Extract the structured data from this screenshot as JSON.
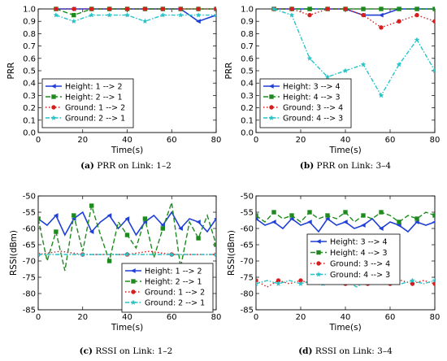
{
  "colors": {
    "height_fwd": "#1f3fd6",
    "height_rev": "#1e8a1e",
    "ground_fwd": "#d61e1e",
    "ground_rev": "#27c3c8"
  },
  "chart_data": [
    {
      "type": "line",
      "caption_tag": "(a)",
      "caption_text": "PRR on Link: 1–2",
      "xlabel": "Time(s)",
      "ylabel": "PRR",
      "xlim": [
        0,
        80
      ],
      "ylim": [
        0,
        1.0
      ],
      "xticks": [
        0,
        20,
        40,
        60,
        80
      ],
      "yticks": [
        0.0,
        0.1,
        0.2,
        0.3,
        0.4,
        0.5,
        0.6,
        0.7,
        0.8,
        0.9,
        1.0
      ],
      "grid": false,
      "legend_position": "lower-left",
      "series": [
        {
          "name": "Height: 1 --> 2",
          "marker": "triangle",
          "style": "solid",
          "x": [
            8,
            16,
            24,
            32,
            40,
            48,
            56,
            64,
            72,
            80
          ],
          "y": [
            1.0,
            1.0,
            1.0,
            1.0,
            1.0,
            1.0,
            1.0,
            1.0,
            0.9,
            0.95
          ]
        },
        {
          "name": "Height: 2 --> 1",
          "marker": "square",
          "style": "dashed",
          "x": [
            8,
            16,
            24,
            32,
            40,
            48,
            56,
            64,
            72,
            80
          ],
          "y": [
            1.0,
            0.95,
            1.0,
            1.0,
            1.0,
            1.0,
            1.0,
            1.0,
            1.0,
            1.0
          ]
        },
        {
          "name": "Ground: 1 --> 2",
          "marker": "circle",
          "style": "dotted",
          "x": [
            8,
            16,
            24,
            32,
            40,
            48,
            56,
            64,
            72,
            80
          ],
          "y": [
            1.0,
            1.0,
            1.0,
            1.0,
            1.0,
            1.0,
            1.0,
            1.0,
            1.0,
            1.0
          ]
        },
        {
          "name": "Ground: 2 --> 1",
          "marker": "star",
          "style": "dashdot",
          "x": [
            8,
            16,
            24,
            32,
            40,
            48,
            56,
            64,
            72,
            80
          ],
          "y": [
            0.95,
            0.9,
            0.95,
            0.95,
            0.95,
            0.9,
            0.95,
            0.95,
            0.95,
            0.95
          ]
        }
      ]
    },
    {
      "type": "line",
      "caption_tag": "(b)",
      "caption_text": "PRR on Link: 3–4",
      "xlabel": "Time(s)",
      "ylabel": "PRR",
      "xlim": [
        0,
        80
      ],
      "ylim": [
        0,
        1.0
      ],
      "xticks": [
        0,
        20,
        40,
        60,
        80
      ],
      "yticks": [
        0.0,
        0.1,
        0.2,
        0.3,
        0.4,
        0.5,
        0.6,
        0.7,
        0.8,
        0.9,
        1.0
      ],
      "grid": false,
      "legend_position": "lower-left",
      "series": [
        {
          "name": "Height: 3 --> 4",
          "marker": "triangle",
          "style": "solid",
          "x": [
            8,
            16,
            24,
            32,
            40,
            48,
            56,
            64,
            72,
            80
          ],
          "y": [
            1.0,
            1.0,
            1.0,
            1.0,
            1.0,
            0.95,
            0.95,
            1.0,
            1.0,
            1.0
          ]
        },
        {
          "name": "Height: 4 --> 3",
          "marker": "square",
          "style": "dashed",
          "x": [
            8,
            16,
            24,
            32,
            40,
            48,
            56,
            64,
            72,
            80
          ],
          "y": [
            1.0,
            1.0,
            1.0,
            1.0,
            1.0,
            1.0,
            1.0,
            1.0,
            1.0,
            1.0
          ]
        },
        {
          "name": "Ground: 3 --> 4",
          "marker": "circle",
          "style": "dotted",
          "x": [
            8,
            16,
            24,
            32,
            40,
            48,
            56,
            64,
            72,
            80
          ],
          "y": [
            1.0,
            1.0,
            0.95,
            1.0,
            1.0,
            0.95,
            0.85,
            0.9,
            0.95,
            0.9
          ]
        },
        {
          "name": "Ground: 4 --> 3",
          "marker": "star",
          "style": "dashdot",
          "x": [
            8,
            16,
            24,
            32,
            40,
            48,
            56,
            64,
            72,
            80
          ],
          "y": [
            1.0,
            0.95,
            0.6,
            0.45,
            0.5,
            0.55,
            0.3,
            0.55,
            0.75,
            0.5
          ]
        }
      ]
    },
    {
      "type": "line",
      "caption_tag": "(c)",
      "caption_text": "RSSI on Link: 1–2",
      "xlabel": "Time(s)",
      "ylabel": "RSSI(dBm)",
      "xlim": [
        0,
        80
      ],
      "ylim": [
        -85,
        -50
      ],
      "xticks": [
        0,
        20,
        40,
        60,
        80
      ],
      "yticks": [
        -85,
        -80,
        -75,
        -70,
        -65,
        -60,
        -55,
        -50
      ],
      "grid": false,
      "legend_position": "lower-right",
      "series": [
        {
          "name": "Height: 1 --> 2",
          "marker": "triangle",
          "style": "solid",
          "approx": true,
          "x": [
            0,
            4,
            8,
            12,
            16,
            20,
            24,
            28,
            32,
            36,
            40,
            44,
            48,
            52,
            56,
            60,
            64,
            68,
            72,
            76,
            80
          ],
          "y": [
            -57,
            -59,
            -56,
            -62,
            -57,
            -55,
            -61,
            -58,
            -56,
            -60,
            -57,
            -62,
            -58,
            -56,
            -59,
            -55,
            -60,
            -57,
            -58,
            -61,
            -57
          ]
        },
        {
          "name": "Height: 2 --> 1",
          "marker": "square",
          "style": "dashed",
          "approx": true,
          "x": [
            0,
            4,
            8,
            12,
            16,
            20,
            24,
            28,
            32,
            36,
            40,
            44,
            48,
            52,
            56,
            60,
            64,
            68,
            72,
            76,
            80
          ],
          "y": [
            -57,
            -70,
            -61,
            -73,
            -56,
            -67,
            -53,
            -62,
            -70,
            -58,
            -62,
            -66,
            -57,
            -69,
            -60,
            -52,
            -72,
            -58,
            -63,
            -56,
            -65
          ]
        },
        {
          "name": "Ground: 1 --> 2",
          "marker": "circle",
          "style": "dotted",
          "approx": true,
          "x": [
            0,
            10,
            20,
            30,
            40,
            50,
            60,
            70,
            80
          ],
          "y": [
            -68,
            -67,
            -68,
            -68,
            -68,
            -67,
            -68,
            -68,
            -68
          ]
        },
        {
          "name": "Ground: 2 --> 1",
          "marker": "star",
          "style": "dashdot",
          "approx": true,
          "x": [
            0,
            10,
            20,
            30,
            40,
            50,
            60,
            70,
            80
          ],
          "y": [
            -68,
            -68,
            -68,
            -68,
            -68,
            -68,
            -68,
            -68,
            -68
          ]
        }
      ]
    },
    {
      "type": "line",
      "caption_tag": "(d)",
      "caption_text": "RSSI on Link: 3–4",
      "xlabel": "Time(s)",
      "ylabel": "RSSI(dBm)",
      "xlim": [
        0,
        80
      ],
      "ylim": [
        -85,
        -50
      ],
      "xticks": [
        0,
        20,
        40,
        60,
        80
      ],
      "yticks": [
        -85,
        -80,
        -75,
        -70,
        -65,
        -60,
        -55,
        -50
      ],
      "grid": false,
      "legend_position": "upper-center",
      "series": [
        {
          "name": "Height: 3 --> 4",
          "marker": "triangle",
          "style": "solid",
          "approx": true,
          "x": [
            0,
            4,
            8,
            12,
            16,
            20,
            24,
            28,
            32,
            36,
            40,
            44,
            48,
            52,
            56,
            60,
            64,
            68,
            72,
            76,
            80
          ],
          "y": [
            -57,
            -59,
            -58,
            -60,
            -57,
            -59,
            -58,
            -61,
            -57,
            -59,
            -58,
            -60,
            -59,
            -57,
            -60,
            -58,
            -59,
            -61,
            -58,
            -59,
            -58
          ]
        },
        {
          "name": "Height: 4 --> 3",
          "marker": "square",
          "style": "dashed",
          "approx": true,
          "x": [
            0,
            4,
            8,
            12,
            16,
            20,
            24,
            28,
            32,
            36,
            40,
            44,
            48,
            52,
            56,
            60,
            64,
            68,
            72,
            76,
            80
          ],
          "y": [
            -56,
            -58,
            -55,
            -57,
            -56,
            -58,
            -55,
            -57,
            -56,
            -57,
            -55,
            -58,
            -56,
            -57,
            -55,
            -56,
            -58,
            -56,
            -57,
            -55,
            -56
          ]
        },
        {
          "name": "Ground: 3 --> 4",
          "marker": "circle",
          "style": "dotted",
          "approx": true,
          "x": [
            0,
            5,
            10,
            15,
            20,
            25,
            30,
            35,
            40,
            45,
            50,
            55,
            60,
            65,
            70,
            75,
            80
          ],
          "y": [
            -76,
            -78,
            -76,
            -77,
            -76,
            -77,
            -76,
            -76,
            -77,
            -76,
            -77,
            -76,
            -77,
            -76,
            -77,
            -76,
            -77
          ]
        },
        {
          "name": "Ground: 4 --> 3",
          "marker": "star",
          "style": "dashdot",
          "approx": true,
          "x": [
            0,
            5,
            10,
            15,
            20,
            25,
            30,
            35,
            40,
            45,
            50,
            55,
            60,
            65,
            70,
            75,
            80
          ],
          "y": [
            -77,
            -76,
            -77,
            -76,
            -77,
            -76,
            -77,
            -77,
            -76,
            -78,
            -76,
            -77,
            -76,
            -77,
            -76,
            -77,
            -76
          ]
        }
      ]
    }
  ]
}
